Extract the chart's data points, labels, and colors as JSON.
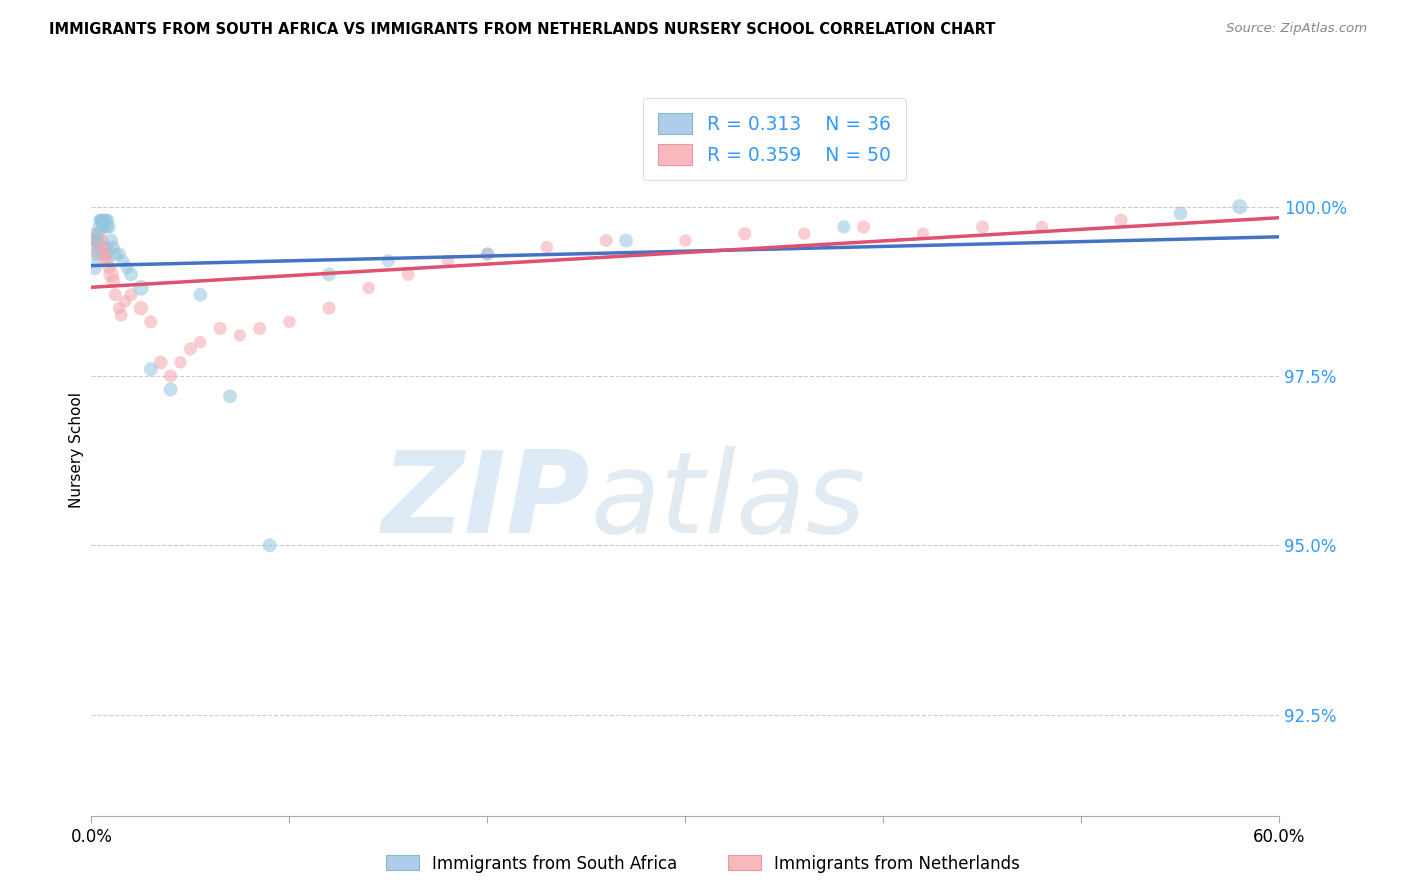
{
  "title": "IMMIGRANTS FROM SOUTH AFRICA VS IMMIGRANTS FROM NETHERLANDS NURSERY SCHOOL CORRELATION CHART",
  "source": "Source: ZipAtlas.com",
  "ylabel": "Nursery School",
  "yticks": [
    100.0,
    97.5,
    95.0,
    92.5
  ],
  "ytick_labels": [
    "100.0%",
    "97.5%",
    "95.0%",
    "92.5%"
  ],
  "xmin": 0.0,
  "xmax": 60.0,
  "ymin": 91.0,
  "ymax": 101.8,
  "R1": 0.313,
  "N1": 36,
  "R2": 0.359,
  "N2": 50,
  "color1": "#92c5de",
  "color2": "#f4a6b0",
  "trendline_color1": "#4472c4",
  "trendline_color2": "#e05070",
  "watermark_zip": "ZIP",
  "watermark_atlas": "atlas",
  "legend_label1": "Immigrants from South Africa",
  "legend_label2": "Immigrants from Netherlands",
  "sa_x": [
    0.15,
    0.2,
    0.25,
    0.3,
    0.35,
    0.4,
    0.45,
    0.5,
    0.55,
    0.6,
    0.65,
    0.7,
    0.75,
    0.8,
    0.85,
    0.9,
    1.0,
    1.1,
    1.2,
    1.4,
    1.6,
    1.8,
    2.0,
    2.5,
    3.0,
    4.0,
    5.5,
    7.0,
    9.0,
    12.0,
    15.0,
    20.0,
    27.0,
    38.0,
    55.0,
    58.0
  ],
  "sa_y": [
    99.1,
    99.3,
    99.5,
    99.6,
    99.7,
    99.8,
    99.8,
    99.8,
    99.7,
    99.8,
    99.7,
    99.8,
    99.8,
    99.7,
    99.8,
    99.7,
    99.5,
    99.4,
    99.3,
    99.3,
    99.2,
    99.1,
    99.0,
    98.8,
    97.6,
    97.3,
    98.7,
    97.2,
    95.0,
    99.0,
    99.2,
    99.3,
    99.5,
    99.7,
    99.9,
    100.0
  ],
  "sa_size": [
    120,
    100,
    90,
    80,
    70,
    80,
    70,
    90,
    80,
    90,
    80,
    90,
    80,
    90,
    80,
    90,
    100,
    90,
    100,
    90,
    80,
    90,
    100,
    130,
    100,
    100,
    100,
    100,
    100,
    100,
    90,
    90,
    100,
    90,
    100,
    120
  ],
  "nl_x": [
    0.1,
    0.15,
    0.2,
    0.25,
    0.3,
    0.35,
    0.4,
    0.45,
    0.5,
    0.55,
    0.6,
    0.65,
    0.7,
    0.75,
    0.8,
    0.85,
    0.9,
    1.0,
    1.1,
    1.2,
    1.4,
    1.5,
    1.7,
    2.0,
    2.5,
    3.0,
    3.5,
    4.0,
    4.5,
    5.0,
    5.5,
    6.5,
    7.5,
    8.5,
    10.0,
    12.0,
    14.0,
    16.0,
    18.0,
    20.0,
    23.0,
    26.0,
    30.0,
    33.0,
    36.0,
    39.0,
    42.0,
    45.0,
    48.0,
    52.0
  ],
  "nl_y": [
    99.5,
    99.6,
    99.5,
    99.4,
    99.3,
    99.5,
    99.6,
    99.4,
    99.3,
    99.5,
    99.4,
    99.2,
    99.3,
    99.4,
    99.2,
    99.3,
    99.1,
    99.0,
    98.9,
    98.7,
    98.5,
    98.4,
    98.6,
    98.7,
    98.5,
    98.3,
    97.7,
    97.5,
    97.7,
    97.9,
    98.0,
    98.2,
    98.1,
    98.2,
    98.3,
    98.5,
    98.8,
    99.0,
    99.2,
    99.3,
    99.4,
    99.5,
    99.5,
    99.6,
    99.6,
    99.7,
    99.6,
    99.7,
    99.7,
    99.8
  ],
  "nl_size": [
    100,
    80,
    90,
    100,
    90,
    80,
    90,
    100,
    90,
    80,
    90,
    80,
    90,
    80,
    90,
    80,
    90,
    130,
    100,
    90,
    80,
    90,
    80,
    90,
    110,
    90,
    100,
    90,
    80,
    90,
    80,
    90,
    80,
    90,
    80,
    90,
    80,
    90,
    80,
    90,
    80,
    90,
    80,
    90,
    80,
    90,
    80,
    90,
    80,
    90
  ]
}
